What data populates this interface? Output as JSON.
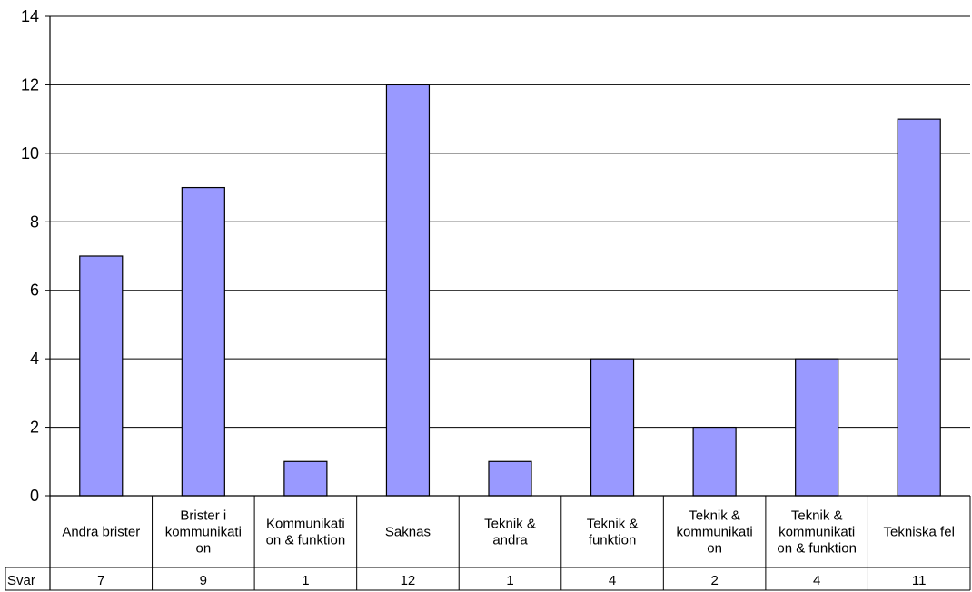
{
  "chart_data": {
    "type": "bar",
    "categories": [
      [
        "Andra brister"
      ],
      [
        "Brister i",
        "kommunikati",
        "on"
      ],
      [
        "Kommunikati",
        "on & funktion"
      ],
      [
        "Saknas"
      ],
      [
        "Teknik &",
        "andra"
      ],
      [
        "Teknik &",
        "funktion"
      ],
      [
        "Teknik &",
        "kommunikati",
        "on"
      ],
      [
        "Teknik &",
        "kommunikati",
        "on & funktion"
      ],
      [
        "Tekniska fel"
      ]
    ],
    "series": [
      {
        "name": "Svar",
        "values": [
          7,
          9,
          1,
          12,
          1,
          4,
          2,
          4,
          11
        ]
      }
    ],
    "yticks": [
      "0",
      "2",
      "4",
      "6",
      "8",
      "10",
      "12",
      "14"
    ],
    "ylim": [
      0,
      14
    ],
    "grid": true,
    "data_table": true,
    "colors": {
      "bar_fill": "#9999ff",
      "bar_stroke": "#000000",
      "grid": "#000000"
    }
  }
}
